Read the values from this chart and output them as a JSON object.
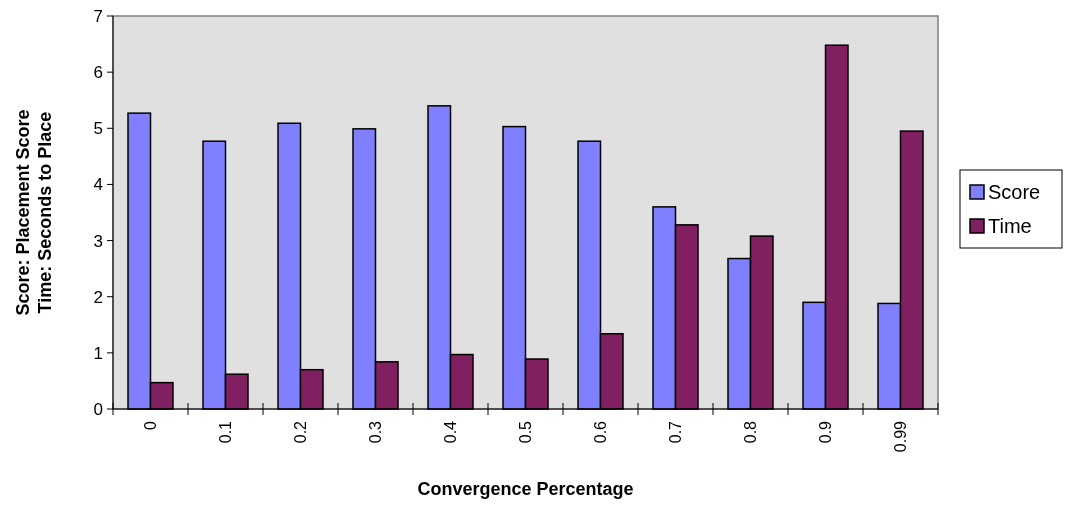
{
  "chart_data": {
    "type": "bar",
    "xlabel": "Convergence Percentage",
    "ylabel": "Score:  Placement Score\nTime:  Seconds to Place",
    "categories": [
      "0",
      "0.1",
      "0.2",
      "0.3",
      "0.4",
      "0.5",
      "0.6",
      "0.7",
      "0.8",
      "0.9",
      "0.99"
    ],
    "series": [
      {
        "name": "Score",
        "color": "#8080ff",
        "values": [
          5.27,
          4.77,
          5.09,
          4.99,
          5.4,
          5.03,
          4.77,
          3.6,
          2.68,
          1.9,
          1.88
        ]
      },
      {
        "name": "Time",
        "color": "#802060",
        "values": [
          0.47,
          0.62,
          0.7,
          0.84,
          0.97,
          0.89,
          1.34,
          3.28,
          3.08,
          6.48,
          4.95
        ]
      }
    ],
    "ylim": [
      0,
      7
    ],
    "yticks": [
      0,
      1,
      2,
      3,
      4,
      5,
      6,
      7
    ],
    "grid": false,
    "legend": "right"
  }
}
